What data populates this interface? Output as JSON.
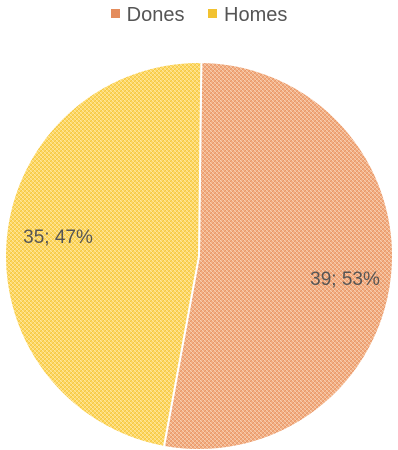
{
  "chart_data": {
    "type": "pie",
    "categories": [
      "Dones",
      "Homes"
    ],
    "values": [
      39,
      35
    ],
    "percentages": [
      53,
      47
    ],
    "data_labels": [
      "39; 53%",
      "35; 47%"
    ],
    "colors": [
      "#F4B183",
      "#FFD966"
    ],
    "hatch_colors": [
      "#E48C5C",
      "#F2C230"
    ],
    "legend_position": "top",
    "title": ""
  }
}
